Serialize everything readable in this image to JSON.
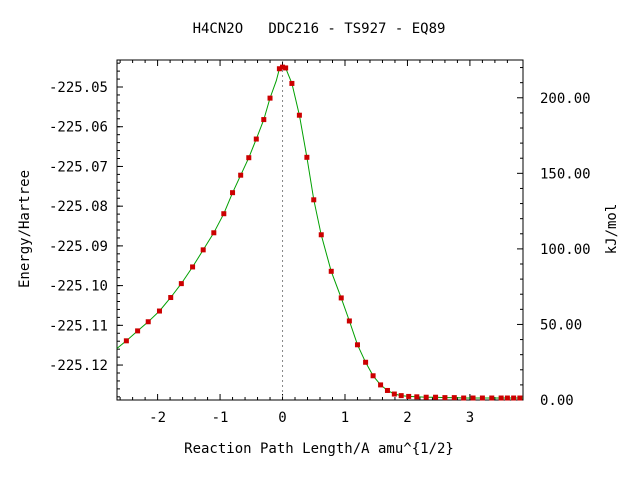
{
  "chart_data": {
    "type": "line",
    "title": "H4CN2O   DDC216 - TS927 - EQ89",
    "xlabel": "Reaction Path Length/A amu^{1/2}",
    "ylabel": "Energy/Hartree",
    "y2label": "kJ/mol",
    "xlim": [
      -2.65,
      3.85
    ],
    "ylim": [
      -225.1288,
      -225.0432
    ],
    "y2lim": [
      0,
      225
    ],
    "grid": false,
    "x_ticks": [
      {
        "value": -2,
        "label": "-2"
      },
      {
        "value": -1,
        "label": "-1"
      },
      {
        "value": 0,
        "label": "0"
      },
      {
        "value": 1,
        "label": "1"
      },
      {
        "value": 2,
        "label": "2"
      },
      {
        "value": 3,
        "label": "3"
      }
    ],
    "y_ticks": [
      {
        "value": -225.05,
        "label": "-225.05"
      },
      {
        "value": -225.06,
        "label": "-225.06"
      },
      {
        "value": -225.07,
        "label": "-225.07"
      },
      {
        "value": -225.08,
        "label": "-225.08"
      },
      {
        "value": -225.09,
        "label": "-225.09"
      },
      {
        "value": -225.1,
        "label": "-225.10"
      },
      {
        "value": -225.11,
        "label": "-225.11"
      },
      {
        "value": -225.12,
        "label": "-225.12"
      }
    ],
    "y2_ticks": [
      {
        "value": 0,
        "label": "0.00"
      },
      {
        "value": 50,
        "label": "50.00"
      },
      {
        "value": 100,
        "label": "100.00"
      },
      {
        "value": 150,
        "label": "150.00"
      },
      {
        "value": 200,
        "label": "200.00"
      }
    ],
    "ts_marker_x": 0,
    "colors": {
      "line": "#00a000",
      "points": "#cc0000",
      "ts_line": "#888888"
    },
    "series": [
      {
        "x": [
          -2.65,
          -2.5,
          -2.32,
          -2.15,
          -1.97,
          -1.79,
          -1.62,
          -1.44,
          -1.27,
          -1.1,
          -0.94,
          -0.8,
          -0.67,
          -0.54,
          -0.42,
          -0.3,
          -0.2,
          -0.1,
          -0.05,
          0,
          0.05,
          0.15,
          0.27,
          0.39,
          0.5,
          0.62,
          0.78,
          0.94,
          1.07,
          1.2,
          1.33,
          1.45,
          1.57,
          1.68,
          1.79,
          1.9,
          2.02,
          2.15,
          2.3,
          2.45,
          2.6,
          2.75,
          2.9,
          3.05,
          3.2,
          3.35,
          3.5,
          3.6,
          3.7,
          3.8,
          3.85
        ],
        "y": [
          -225.1158,
          -225.1139,
          -225.1114,
          -225.1091,
          -225.1064,
          -225.103,
          -225.0995,
          -225.0953,
          -225.091,
          -225.0867,
          -225.0819,
          -225.0766,
          -225.0722,
          -225.0678,
          -225.0631,
          -225.0582,
          -225.0528,
          -225.0484,
          -225.0454,
          -225.045,
          -225.0452,
          -225.0491,
          -225.0571,
          -225.0677,
          -225.0784,
          -225.0872,
          -225.0964,
          -225.1031,
          -225.1089,
          -225.1149,
          -225.1193,
          -225.1227,
          -225.125,
          -225.1264,
          -225.1273,
          -225.1277,
          -225.1279,
          -225.128,
          -225.1281,
          -225.1281,
          -225.1282,
          -225.1282,
          -225.1283,
          -225.1283,
          -225.1283,
          -225.1283,
          -225.1283,
          -225.1283,
          -225.1283,
          -225.1283,
          -225.1283
        ],
        "markers": [
          -2.5,
          -2.32,
          -2.15,
          -1.97,
          -1.79,
          -1.62,
          -1.44,
          -1.27,
          -1.1,
          -0.94,
          -0.8,
          -0.67,
          -0.54,
          -0.42,
          -0.3,
          -0.2,
          -0.05,
          0,
          0.05,
          0.15,
          0.27,
          0.39,
          0.5,
          0.62,
          0.78,
          0.94,
          1.07,
          1.2,
          1.33,
          1.45,
          1.57,
          1.68,
          1.79,
          1.9,
          2.02,
          2.15,
          2.3,
          2.45,
          2.6,
          2.75,
          2.9,
          3.05,
          3.2,
          3.35,
          3.5,
          3.6,
          3.7,
          3.8
        ]
      }
    ]
  }
}
